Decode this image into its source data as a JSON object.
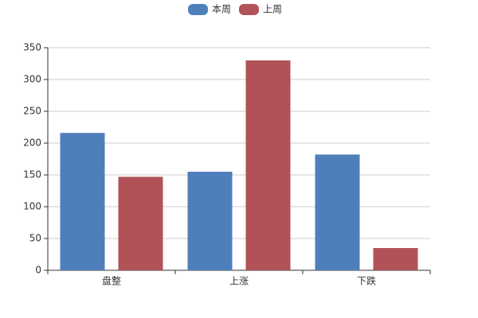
{
  "chart_data": {
    "type": "bar",
    "categories": [
      "盘整",
      "上涨",
      "下跌"
    ],
    "series": [
      {
        "name": "本周",
        "color": "#4e7fbb",
        "values": [
          216,
          155,
          182
        ]
      },
      {
        "name": "上周",
        "color": "#b05257",
        "values": [
          147,
          330,
          35
        ]
      }
    ],
    "ylim": [
      0,
      350
    ],
    "yticks": [
      0,
      50,
      100,
      150,
      200,
      250,
      300,
      350
    ],
    "grid": true,
    "legend": "top"
  }
}
